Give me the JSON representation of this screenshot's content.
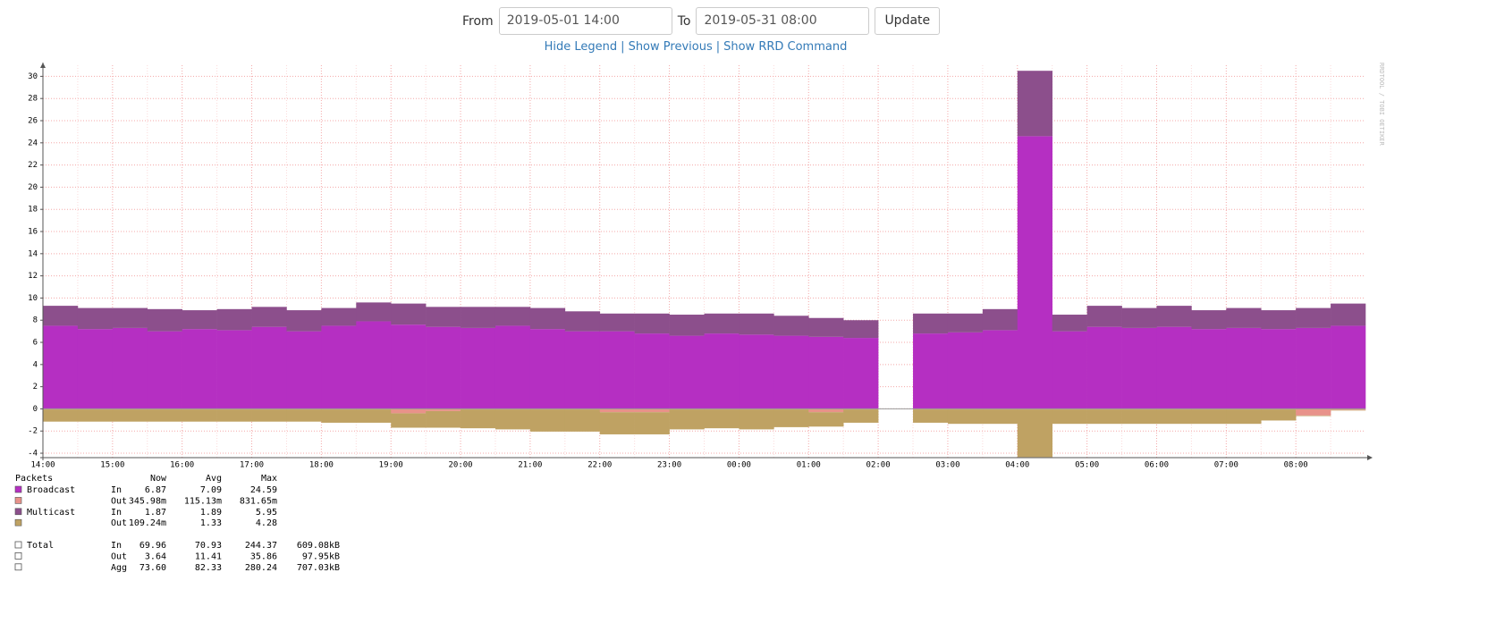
{
  "form": {
    "from_label": "From",
    "from_value": "2019-05-01 14:00",
    "to_label": "To",
    "to_value": "2019-05-31 08:00",
    "button": "Update"
  },
  "links": [
    "Hide Legend",
    "Show Previous",
    "Show RRD Command"
  ],
  "chart_data": {
    "type": "stacked-bar",
    "watermark": "RRDTOOL / TOBI OETIKER",
    "categories": [
      "14:00",
      null,
      "15:00",
      null,
      "16:00",
      null,
      "17:00",
      null,
      "18:00",
      null,
      "19:00",
      null,
      "20:00",
      null,
      "21:00",
      null,
      "22:00",
      null,
      "23:00",
      null,
      "00:00",
      null,
      "01:00",
      null,
      "02:00",
      null,
      "03:00",
      null,
      "04:00",
      null,
      "05:00",
      null,
      "06:00",
      null,
      "07:00",
      null,
      "08:00",
      null
    ],
    "ylim": [
      -4.4,
      31
    ],
    "yticks": [
      -4,
      -2,
      0,
      2,
      4,
      6,
      8,
      10,
      12,
      14,
      16,
      18,
      20,
      22,
      24,
      26,
      28,
      30
    ],
    "grid": true,
    "legend_title": "Packets",
    "legend_columns": [
      "Now",
      "Avg",
      "Max"
    ],
    "series": [
      {
        "name": "Broadcast",
        "direction": "In",
        "color": "#b52fc2",
        "stats": [
          "6.87",
          "7.09",
          "24.59"
        ],
        "values": [
          7.5,
          7.2,
          7.3,
          7.0,
          7.2,
          7.1,
          7.4,
          7.0,
          7.5,
          7.9,
          7.6,
          7.4,
          7.3,
          7.5,
          7.2,
          7.0,
          7.0,
          6.8,
          6.6,
          6.8,
          6.7,
          6.6,
          6.5,
          6.4,
          null,
          6.8,
          6.9,
          7.1,
          24.6,
          7.0,
          7.4,
          7.3,
          7.4,
          7.2,
          7.3,
          7.2,
          7.3,
          7.5
        ]
      },
      {
        "direction": "Out",
        "color": "#e8928a",
        "stats": [
          "345.98m",
          "115.13m",
          "831.65m"
        ],
        "values": [
          -0.05,
          -0.05,
          -0.05,
          -0.05,
          -0.05,
          -0.05,
          -0.05,
          -0.05,
          -0.05,
          -0.05,
          -0.4,
          -0.2,
          -0.05,
          -0.05,
          -0.05,
          -0.05,
          -0.3,
          -0.3,
          -0.05,
          -0.05,
          -0.05,
          -0.05,
          -0.3,
          -0.05,
          null,
          -0.05,
          -0.05,
          -0.05,
          -0.05,
          -0.05,
          -0.05,
          -0.05,
          -0.05,
          -0.05,
          -0.05,
          -0.05,
          -0.6,
          -0.1
        ]
      },
      {
        "name": "Multicast",
        "direction": "In",
        "color": "#8c4f8c",
        "stats": [
          "1.87",
          "1.89",
          "5.95"
        ],
        "values": [
          1.8,
          1.9,
          1.8,
          2.0,
          1.7,
          1.9,
          1.8,
          1.9,
          1.6,
          1.7,
          1.9,
          1.8,
          1.9,
          1.7,
          1.9,
          1.8,
          1.6,
          1.8,
          1.9,
          1.8,
          1.9,
          1.8,
          1.7,
          1.6,
          null,
          1.8,
          1.7,
          1.9,
          5.9,
          1.5,
          1.9,
          1.8,
          1.9,
          1.7,
          1.8,
          1.7,
          1.8,
          2.0
        ]
      },
      {
        "direction": "Out",
        "color": "#bfa263",
        "stats": [
          "109.24m",
          "1.33",
          "4.28"
        ],
        "values": [
          -1.1,
          -1.1,
          -1.1,
          -1.1,
          -1.1,
          -1.1,
          -1.1,
          -1.1,
          -1.2,
          -1.2,
          -1.3,
          -1.5,
          -1.7,
          -1.8,
          -2.0,
          -2.0,
          -2.0,
          -2.0,
          -1.8,
          -1.7,
          -1.8,
          -1.6,
          -1.3,
          -1.2,
          null,
          -1.2,
          -1.3,
          -1.3,
          -4.3,
          -1.3,
          -1.3,
          -1.3,
          -1.3,
          -1.3,
          -1.3,
          -1.0,
          -0.05,
          -0.05
        ]
      }
    ],
    "totals": [
      {
        "name": "Total",
        "direction": "In",
        "stats": [
          "69.96",
          "70.93",
          "244.37",
          "609.08kB"
        ]
      },
      {
        "direction": "Out",
        "stats": [
          "3.64",
          "11.41",
          "35.86",
          "97.95kB"
        ]
      },
      {
        "direction": "Agg",
        "stats": [
          "73.60",
          "82.33",
          "280.24",
          "707.03kB"
        ]
      }
    ]
  }
}
